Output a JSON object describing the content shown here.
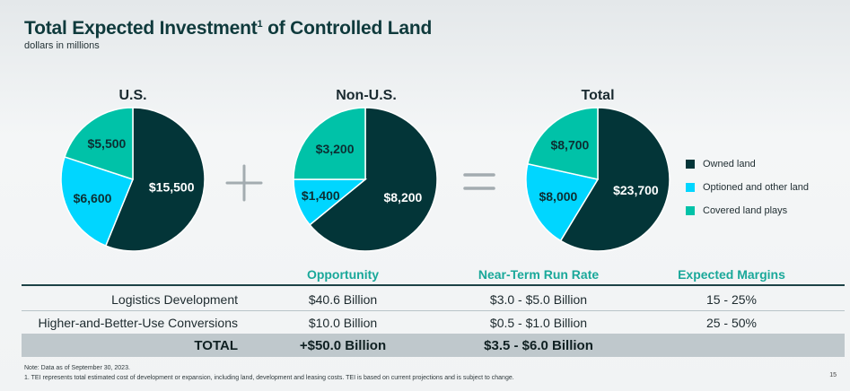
{
  "header": {
    "title": "Total Expected Investment",
    "title_sup": "1",
    "title_rest": " of Controlled Land",
    "subtitle": "dollars in millions"
  },
  "colors": {
    "owned": "#033538",
    "optioned": "#00d6ff",
    "covered": "#00c2a8",
    "accent": "#1aa89a"
  },
  "chart_data": [
    {
      "type": "pie",
      "title": "U.S.",
      "categories": [
        "Owned land",
        "Optioned and other land",
        "Covered land plays"
      ],
      "values": [
        15500,
        6600,
        5500
      ],
      "labels": [
        "$15,500",
        "$6,600",
        "$5,500"
      ]
    },
    {
      "type": "pie",
      "title": "Non-U.S.",
      "categories": [
        "Owned land",
        "Optioned and other land",
        "Covered land plays"
      ],
      "values": [
        8200,
        1400,
        3200
      ],
      "labels": [
        "$8,200",
        "$1,400",
        "$3,200"
      ]
    },
    {
      "type": "pie",
      "title": "Total",
      "categories": [
        "Owned land",
        "Optioned and other land",
        "Covered land plays"
      ],
      "values": [
        23700,
        8000,
        8700
      ],
      "labels": [
        "$23,700",
        "$8,000",
        "$8,700"
      ]
    }
  ],
  "operators": {
    "plus": "+",
    "equals": "="
  },
  "legend": [
    {
      "label": "Owned land",
      "color": "#033538"
    },
    {
      "label": "Optioned and other land",
      "color": "#00d6ff"
    },
    {
      "label": "Covered land plays",
      "color": "#00c2a8"
    }
  ],
  "table": {
    "headers": [
      "Opportunity",
      "Near-Term Run Rate",
      "Expected Margins"
    ],
    "rows": [
      {
        "label": "Logistics Development",
        "opportunity": "$40.6 Billion",
        "run_rate": "$3.0 - $5.0 Billion",
        "margins": "15 - 25%"
      },
      {
        "label": "Higher-and-Better-Use Conversions",
        "opportunity": "$10.0 Billion",
        "run_rate": "$0.5 - $1.0 Billion",
        "margins": "25 - 50%"
      }
    ],
    "total": {
      "label": "TOTAL",
      "opportunity": "+$50.0 Billion",
      "run_rate": "$3.5 - $6.0 Billion"
    }
  },
  "notes": {
    "line1": "Note: Data as of September 30, 2023.",
    "line2": "1. TEI represents total estimated cost of development or expansion, including land, development and leasing costs. TEI is based on current projections and is subject to change."
  },
  "page_number": "15"
}
